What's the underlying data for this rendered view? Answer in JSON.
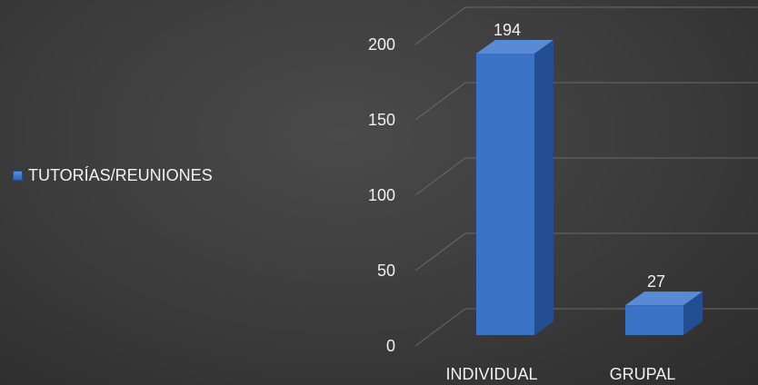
{
  "chart_data": {
    "type": "bar",
    "categories": [
      "INDIVIDUAL",
      "GRUPAL"
    ],
    "series": [
      {
        "name": "TUTORÍAS/REUNIONES",
        "values": [
          194,
          27
        ],
        "color": "#3a72c6"
      }
    ],
    "data_labels": [
      "194",
      "27"
    ],
    "yticks": [
      0,
      50,
      100,
      150,
      200
    ],
    "ylim": [
      0,
      200
    ],
    "legend": "left",
    "grid": true,
    "style": "3d-column"
  }
}
